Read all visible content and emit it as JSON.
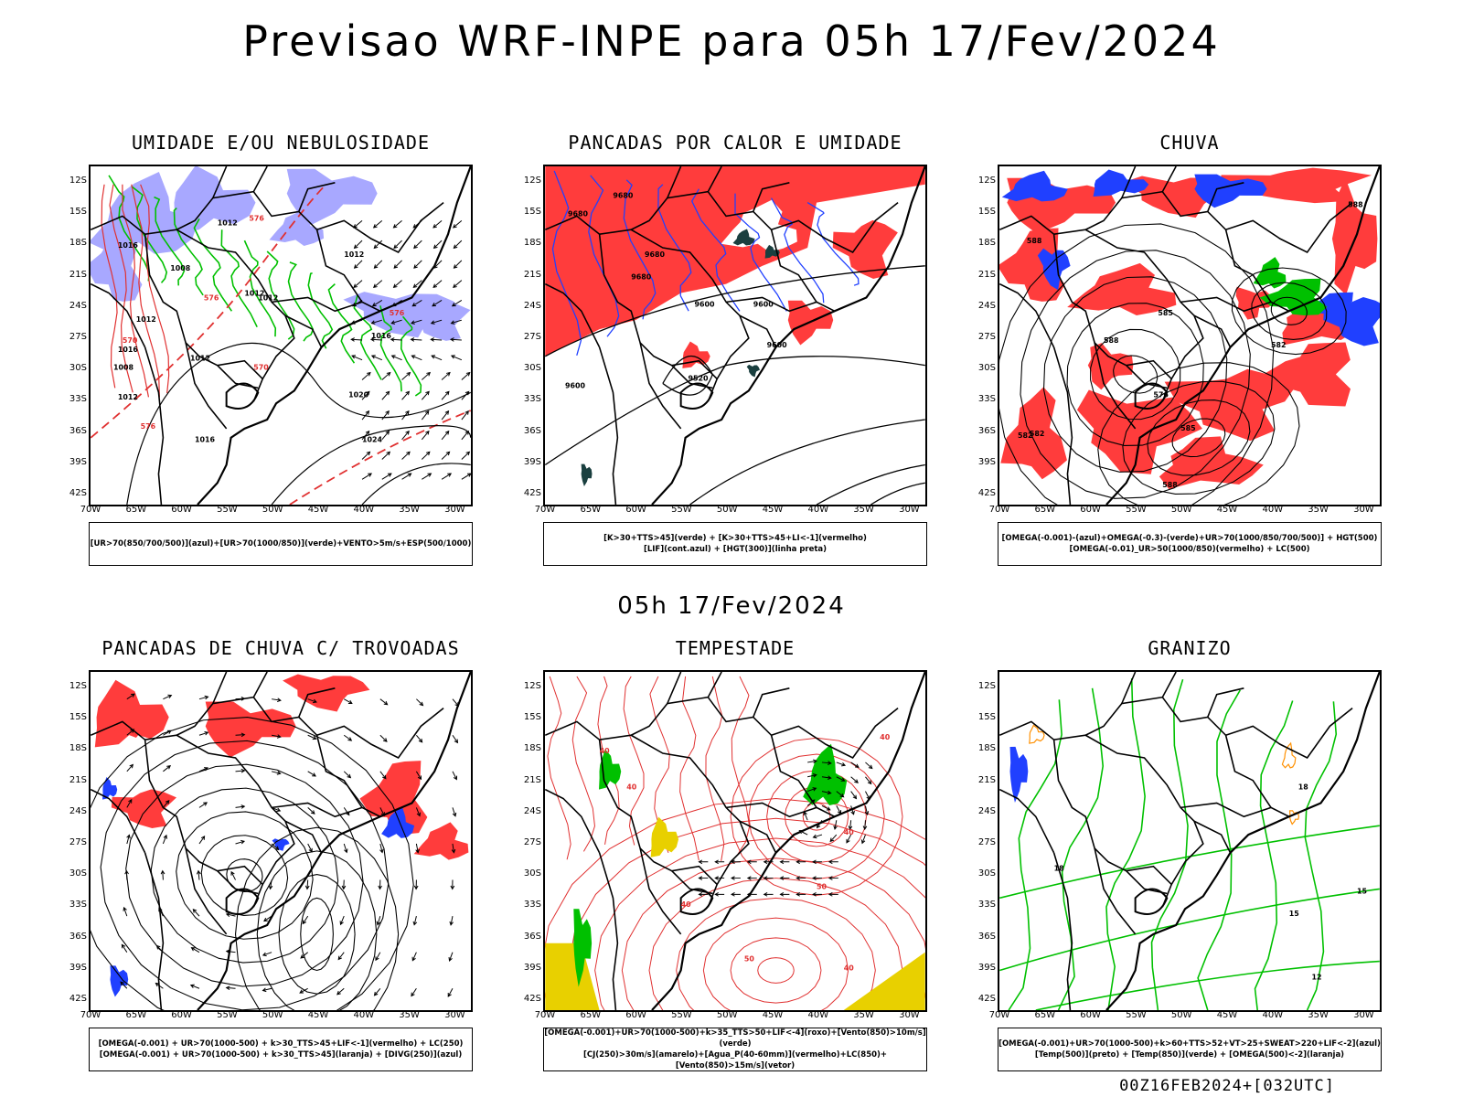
{
  "title": "Previsao WRF-INPE  para 05h 17/Fev/2024",
  "middle_title": "05h 17/Fev/2024",
  "footer": "00Z16FEB2024+[032UTC]",
  "axes": {
    "lat_labels": [
      "12S",
      "15S",
      "18S",
      "21S",
      "24S",
      "27S",
      "30S",
      "33S",
      "36S",
      "39S",
      "42S"
    ],
    "lon_labels": [
      "70W",
      "65W",
      "60W",
      "55W",
      "50W",
      "45W",
      "40W",
      "35W",
      "30W"
    ]
  },
  "colors": {
    "red": "#ff3c3c",
    "green": "#00c000",
    "blue": "#2040ff",
    "lavender": "#a8a8ff",
    "darkteal": "#1a3f3f",
    "yellow": "#e8d000",
    "orange": "#ff9000"
  },
  "panels": [
    {
      "title": "UMIDADE E/OU NEBULOSIDADE",
      "legend": [
        "[UR>70(850/700/500)](azul)+[UR>70(1000/850)](verde)+VENTO>5m/s+ESP(500/1000)"
      ],
      "labels": [
        "1012",
        "1012",
        "1016",
        "1008",
        "1012",
        "1012",
        "1012",
        "1016",
        "1012",
        "1020",
        "1024",
        "1016",
        "1012",
        "1016",
        "1008",
        "576",
        "576",
        "570",
        "570",
        "576",
        "576"
      ]
    },
    {
      "title": "PANCADAS POR CALOR E UMIDADE",
      "legend": [
        "[K>30+TTS>45](verde) + [K>30+TTS>45+LI<-1](vermelho)",
        "[LIF](cont.azul) + [HGT(300)](linha preta)"
      ],
      "labels": [
        "9680",
        "9680",
        "9680",
        "9680",
        "9600",
        "9600",
        "9600",
        "9520",
        "9600"
      ]
    },
    {
      "title": "CHUVA",
      "legend": [
        "[OMEGA(-0.001)-(azul)+OMEGA(-0.3)-(verde)+UR>70(1000/850/700/500)] + HGT(500)",
        "[OMEGA(-0.01)_UR>50(1000/850)(vermelho) + LC(500)"
      ],
      "labels": [
        "588",
        "588",
        "585",
        "582",
        "582",
        "576",
        "585",
        "588",
        "588",
        "582"
      ]
    },
    {
      "title": "PANCADAS DE CHUVA C/ TROVOADAS",
      "legend": [
        "[OMEGA(-0.001) + UR>70(1000-500) + k>30_TTS>45+LIF<-1](vermelho) + LC(250)",
        "[OMEGA(-0.001) + UR>70(1000-500) + k>30_TTS>45](laranja) + [DIVG(250)](azul)"
      ],
      "labels": []
    },
    {
      "title": "TEMPESTADE",
      "legend": [
        "[OMEGA(-0.001)+UR>70(1000-500)+k>35_TTS>50+LIF<-4](roxo)+[Vento(850)>10m/s](verde)",
        "[CJ(250)>30m/s](amarelo)+[Agua_P(40-60mm)](vermelho)+LC(850)+[Vento(850)>15m/s](vetor)"
      ],
      "labels": [
        "40",
        "40",
        "40",
        "40",
        "50",
        "40",
        "40",
        "50"
      ]
    },
    {
      "title": "GRANIZO",
      "legend": [
        "[OMEGA(-0.001)+UR>70(1000-500)+k>60+TTS>52+VT>25+SWEAT>220+LIF<-2](azul)",
        "[Temp(500)](preto) + [Temp(850)](verde) + [OMEGA(500)<-2](laranja)"
      ],
      "labels": [
        "18",
        "18",
        "15",
        "15",
        "12"
      ]
    }
  ]
}
